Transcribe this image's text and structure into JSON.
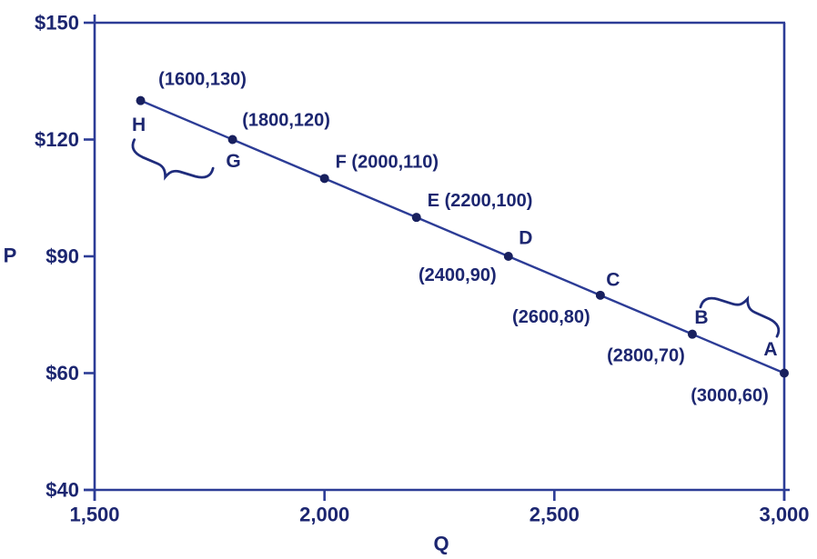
{
  "chart_data": {
    "type": "line",
    "title": "",
    "xlabel": "Q",
    "ylabel": "P",
    "xlim": [
      1500,
      3000
    ],
    "x_ticks": [
      "1,500",
      "2,000",
      "2,500",
      "3,000"
    ],
    "x_tick_values": [
      1500,
      2000,
      2500,
      3000
    ],
    "y_ticks": [
      "$150",
      "$120",
      "$90",
      "$60",
      "$40"
    ],
    "y_tick_values": [
      150,
      120,
      90,
      60,
      40
    ],
    "grid": false,
    "legend": "none",
    "points": [
      {
        "name": "H",
        "q": 1600,
        "p": 130,
        "coord_label": "(1600,130)"
      },
      {
        "name": "G",
        "q": 1800,
        "p": 120,
        "coord_label": "(1800,120)"
      },
      {
        "name": "F",
        "q": 2000,
        "p": 110,
        "coord_label": "(2000,110)"
      },
      {
        "name": "E",
        "q": 2200,
        "p": 100,
        "coord_label": "(2200,100)"
      },
      {
        "name": "D",
        "q": 2400,
        "p": 90,
        "coord_label": "(2400,90)"
      },
      {
        "name": "C",
        "q": 2600,
        "p": 80,
        "coord_label": "(2600,80)"
      },
      {
        "name": "B",
        "q": 2800,
        "p": 70,
        "coord_label": "(2800,70)"
      },
      {
        "name": "A",
        "q": 3000,
        "p": 60,
        "coord_label": "(3000,60)"
      }
    ],
    "annotations": [
      {
        "type": "curly-brace",
        "location": "below segment H-G"
      },
      {
        "type": "curly-brace",
        "location": "above segment B-A"
      }
    ],
    "colors": {
      "ink": "#1c2670",
      "line": "#2c3c96",
      "dot": "#18205e",
      "background": "#ffffff"
    }
  }
}
